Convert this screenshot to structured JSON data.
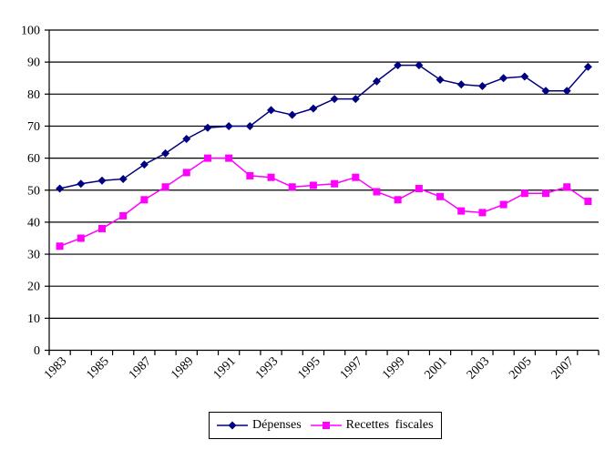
{
  "chart_data": {
    "type": "line",
    "title": "",
    "xlabel": "",
    "ylabel": "",
    "x": [
      1983,
      1984,
      1985,
      1986,
      1987,
      1988,
      1989,
      1990,
      1991,
      1992,
      1993,
      1994,
      1995,
      1996,
      1997,
      1998,
      1999,
      2000,
      2001,
      2002,
      2003,
      2004,
      2005,
      2006,
      2007,
      2008
    ],
    "x_tick_labels": [
      "1983",
      "1985",
      "1987",
      "1989",
      "1991",
      "1993",
      "1995",
      "1997",
      "1999",
      "2001",
      "2003",
      "2005",
      "2007"
    ],
    "y_tick_labels": [
      "0",
      "10",
      "20",
      "30",
      "40",
      "50",
      "60",
      "70",
      "80",
      "90",
      "100"
    ],
    "ylim": [
      0,
      100
    ],
    "ytick_step": 10,
    "grid": "horizontal",
    "background": "#FFFFFF",
    "axis_color": "#000000",
    "legend_position": "bottom-center",
    "series": [
      {
        "name": "Dépenses",
        "color": "#000080",
        "marker": "diamond",
        "values": [
          50.5,
          52,
          53,
          53.5,
          58,
          61.5,
          66,
          69.5,
          70,
          70,
          75,
          73.5,
          75.5,
          78.5,
          78.5,
          84,
          89,
          89,
          84.5,
          83,
          82.5,
          85,
          85.5,
          81,
          81,
          88.5
        ]
      },
      {
        "name": "Recettes fiscales",
        "color": "#FF00FF",
        "marker": "square",
        "values": [
          32.5,
          35,
          38,
          42,
          47,
          51,
          55.5,
          60,
          60,
          54.5,
          54,
          51,
          51.5,
          52,
          54,
          49.5,
          47,
          50.5,
          48,
          43.5,
          43,
          45.5,
          49,
          49,
          51,
          46.5
        ]
      }
    ]
  }
}
